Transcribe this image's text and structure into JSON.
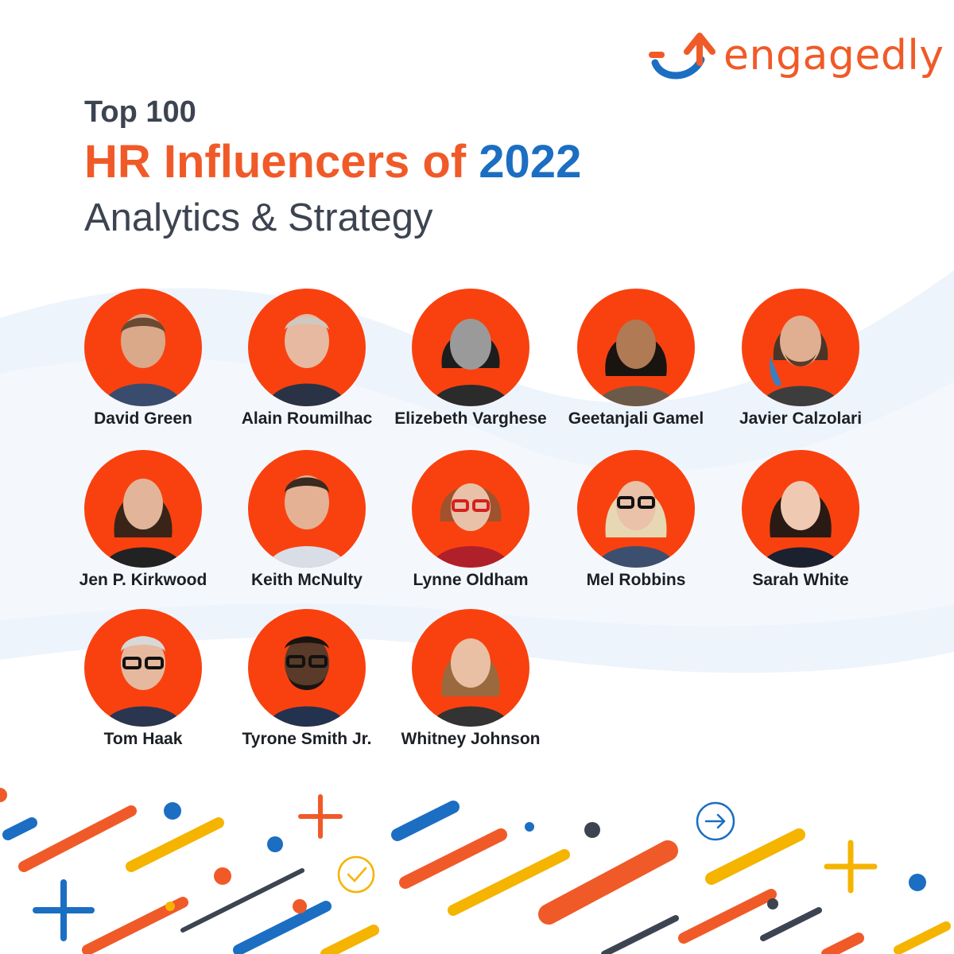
{
  "brand": {
    "name": "engagedly",
    "colors": {
      "orange": "#f05a28",
      "blue": "#1b6ec2",
      "avatar_bg": "#f9410f",
      "dark": "#3d4451"
    }
  },
  "header": {
    "eyebrow": "Top 100",
    "title_part1": "HR Influencers of",
    "title_year": "2022",
    "subtitle": "Analytics & Strategy"
  },
  "influencers": [
    {
      "name": "David Green"
    },
    {
      "name": "Alain Roumilhac"
    },
    {
      "name": "Elizebeth Varghese"
    },
    {
      "name": "Geetanjali Gamel"
    },
    {
      "name": "Javier Calzolari"
    },
    {
      "name": "Jen P. Kirkwood"
    },
    {
      "name": "Keith McNulty"
    },
    {
      "name": "Lynne Oldham"
    },
    {
      "name": "Mel Robbins"
    },
    {
      "name": "Sarah White"
    },
    {
      "name": "Tom Haak"
    },
    {
      "name": "Tyrone Smith Jr."
    },
    {
      "name": "Whitney Johnson"
    }
  ],
  "decorations": {
    "icons": [
      "plus-icon",
      "check-circle-icon",
      "arrow-circle-icon"
    ]
  }
}
